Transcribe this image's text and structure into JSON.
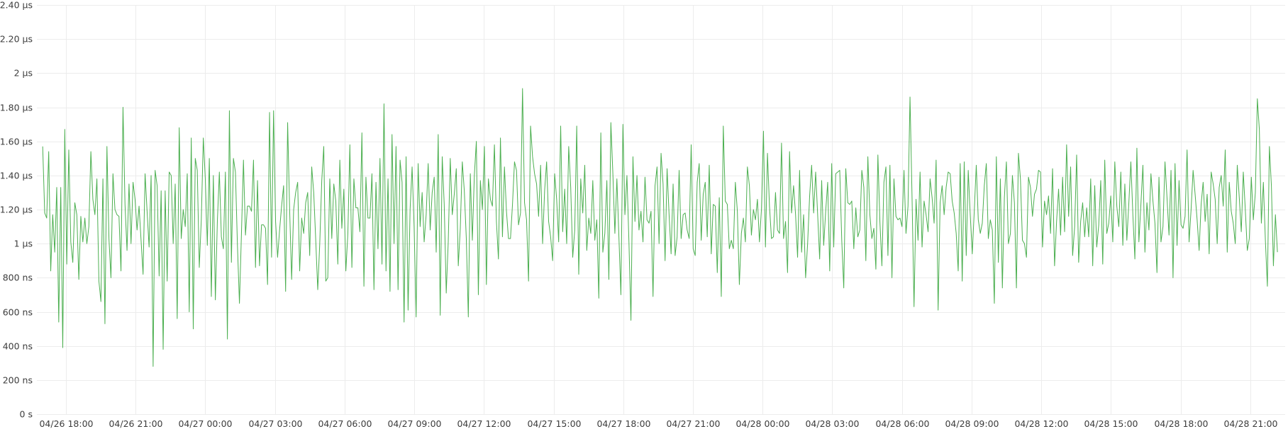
{
  "chart_data": {
    "type": "line",
    "title": "",
    "xlabel": "",
    "ylabel": "",
    "grid": true,
    "legend": "none",
    "color": "#4caf50",
    "ylim": [
      0,
      2400
    ],
    "y_unit": "ns",
    "y_ticks": [
      {
        "value": 0,
        "label": "0 s"
      },
      {
        "value": 200,
        "label": "200 ns"
      },
      {
        "value": 400,
        "label": "400 ns"
      },
      {
        "value": 600,
        "label": "600 ns"
      },
      {
        "value": 800,
        "label": "800 ns"
      },
      {
        "value": 1000,
        "label": "1 µs"
      },
      {
        "value": 1200,
        "label": "1.20 µs"
      },
      {
        "value": 1400,
        "label": "1.40 µs"
      },
      {
        "value": 1600,
        "label": "1.60 µs"
      },
      {
        "value": 1800,
        "label": "1.80 µs"
      },
      {
        "value": 2000,
        "label": "2 µs"
      },
      {
        "value": 2200,
        "label": "2.20 µs"
      },
      {
        "value": 2400,
        "label": "2.40 µs"
      }
    ],
    "xlim": [
      "04/26 16:45",
      "04/28 22:30"
    ],
    "x_ticks": [
      {
        "value": "04/26 18:00",
        "label": "04/26 18:00"
      },
      {
        "value": "04/26 21:00",
        "label": "04/26 21:00"
      },
      {
        "value": "04/27 00:00",
        "label": "04/27 00:00"
      },
      {
        "value": "04/27 03:00",
        "label": "04/27 03:00"
      },
      {
        "value": "04/27 06:00",
        "label": "04/27 06:00"
      },
      {
        "value": "04/27 09:00",
        "label": "04/27 09:00"
      },
      {
        "value": "04/27 12:00",
        "label": "04/27 12:00"
      },
      {
        "value": "04/27 15:00",
        "label": "04/27 15:00"
      },
      {
        "value": "04/27 18:00",
        "label": "04/27 18:00"
      },
      {
        "value": "04/27 21:00",
        "label": "04/27 21:00"
      },
      {
        "value": "04/28 00:00",
        "label": "04/28 00:00"
      },
      {
        "value": "04/28 03:00",
        "label": "04/28 03:00"
      },
      {
        "value": "04/28 06:00",
        "label": "04/28 06:00"
      },
      {
        "value": "04/28 09:00",
        "label": "04/28 09:00"
      },
      {
        "value": "04/28 12:00",
        "label": "04/28 12:00"
      },
      {
        "value": "04/28 15:00",
        "label": "04/28 15:00"
      },
      {
        "value": "04/28 18:00",
        "label": "04/28 18:00"
      },
      {
        "value": "04/28 21:00",
        "label": "04/28 21:00"
      }
    ],
    "series": [
      {
        "x_start": "04/26 17:00",
        "x_end": "04/28 22:10",
        "values": [
          1570,
          1180,
          1150,
          1540,
          840,
          1170,
          950,
          1330,
          540,
          1330,
          390,
          1670,
          880,
          1550,
          1010,
          890,
          1240,
          1170,
          790,
          1160,
          1010,
          1150,
          1000,
          1100,
          1540,
          1260,
          1170,
          1380,
          780,
          660,
          1380,
          530,
          1570,
          1030,
          800,
          1410,
          1200,
          1170,
          1160,
          840,
          1800,
          1230,
          960,
          1350,
          1000,
          1360,
          1260,
          1080,
          1220,
          1020,
          820,
          1410,
          1190,
          980,
          1400,
          280,
          1430,
          1340,
          810,
          1310,
          380,
          1310,
          780,
          1420,
          1400,
          1000,
          1350,
          560,
          1680,
          1030,
          1200,
          1100,
          1410,
          600,
          1620,
          500,
          1500,
          1430,
          860,
          1140,
          1620,
          1380,
          990,
          1500,
          690,
          1400,
          670,
          1130,
          1420,
          1040,
          970,
          1420,
          440,
          1780,
          890,
          1500,
          1420,
          990,
          650,
          1060,
          1490,
          1050,
          1220,
          1220,
          1190,
          1490,
          860,
          1370,
          870,
          1110,
          1110,
          1090,
          760,
          1770,
          920,
          1780,
          1130,
          920,
          1080,
          1220,
          1340,
          720,
          1710,
          1200,
          790,
          1200,
          1300,
          1360,
          840,
          1150,
          1060,
          1240,
          1300,
          930,
          1450,
          1300,
          1020,
          730,
          1000,
          1370,
          1570,
          780,
          800,
          1380,
          1030,
          1350,
          1250,
          880,
          1490,
          1090,
          1320,
          840,
          1060,
          1580,
          860,
          1380,
          1210,
          1210,
          1070,
          1650,
          750,
          1390,
          1150,
          1150,
          1410,
          730,
          1360,
          970,
          1500,
          880,
          1820,
          840,
          1380,
          720,
          1640,
          1000,
          1570,
          730,
          1490,
          1360,
          540,
          1510,
          610,
          1200,
          1450,
          1100,
          570,
          1470,
          1100,
          1300,
          1010,
          1170,
          1470,
          1080,
          1300,
          1390,
          950,
          1640,
          580,
          1510,
          1230,
          710,
          1010,
          1500,
          1170,
          1290,
          1440,
          870,
          1090,
          1480,
          1310,
          1030,
          570,
          1410,
          1020,
          1400,
          1600,
          700,
          1370,
          1200,
          1570,
          760,
          1380,
          1260,
          1220,
          1580,
          1130,
          910,
          1620,
          1040,
          1450,
          1190,
          1030,
          1030,
          1230,
          1480,
          1430,
          1110,
          1180,
          1910,
          1240,
          1140,
          780,
          1690,
          1510,
          1410,
          1350,
          1160,
          1460,
          1000,
          1310,
          1480,
          1130,
          1040,
          900,
          1410,
          1260,
          1010,
          1690,
          1070,
          1320,
          1000,
          1570,
          1330,
          920,
          1080,
          1690,
          820,
          1380,
          1180,
          1460,
          960,
          1150,
          1060,
          1370,
          1020,
          1140,
          680,
          1650,
          950,
          1060,
          1370,
          790,
          1710,
          1410,
          1060,
          1380,
          1040,
          700,
          1700,
          1170,
          1400,
          1010,
          550,
          1510,
          1130,
          1400,
          1080,
          1190,
          1010,
          1390,
          1140,
          1120,
          1190,
          690,
          1340,
          1450,
          1000,
          1530,
          1350,
          900,
          1440,
          1170,
          940,
          1350,
          930,
          1040,
          1430,
          1030,
          1170,
          1180,
          1080,
          1030,
          1580,
          970,
          930,
          1360,
          1470,
          1020,
          1290,
          1360,
          1040,
          1460,
          940,
          1230,
          1220,
          830,
          1270,
          690,
          1690,
          1250,
          1230,
          970,
          1020,
          970,
          1360,
          1190,
          760,
          1060,
          1150,
          1010,
          1450,
          1340,
          1050,
          1200,
          1140,
          1260,
          1010,
          1200,
          1660,
          980,
          1530,
          1220,
          1030,
          1040,
          1300,
          1080,
          1060,
          1590,
          1030,
          1130,
          830,
          1540,
          1180,
          1340,
          1170,
          920,
          1430,
          950,
          1170,
          800,
          1000,
          1280,
          1460,
          1180,
          1420,
          1170,
          910,
          1370,
          990,
          1190,
          1360,
          840,
          1470,
          980,
          1410,
          1420,
          1430,
          1020,
          740,
          1440,
          1240,
          1230,
          1250,
          970,
          1210,
          1040,
          1080,
          1430,
          1330,
          900,
          1510,
          1170,
          1030,
          1090,
          850,
          1520,
          1130,
          870,
          1360,
          1450,
          930,
          1460,
          800,
          1380,
          1160,
          1140,
          1150,
          1100,
          1430,
          1060,
          1220,
          1860,
          1280,
          630,
          1260,
          1020,
          1420,
          980,
          1250,
          1170,
          1070,
          1380,
          1270,
          1120,
          1490,
          610,
          1240,
          1340,
          1170,
          1330,
          1420,
          1410,
          1250,
          1180,
          1060,
          840,
          1470,
          780,
          1480,
          930,
          1430,
          1170,
          940,
          1190,
          1460,
          1140,
          1060,
          1120,
          1340,
          1470,
          1030,
          1140,
          1080,
          650,
          1510,
          890,
          1380,
          740,
          1270,
          1480,
          1000,
          1060,
          1400,
          1240,
          740,
          1530,
          1380,
          1020,
          1000,
          920,
          1390,
          1330,
          1160,
          1290,
          1320,
          1430,
          1420,
          980,
          1250,
          1170,
          1280,
          1060,
          1440,
          870,
          1130,
          1320,
          1050,
          1390,
          1070,
          1580,
          1160,
          1450,
          930,
          1100,
          1520,
          890,
          1130,
          1240,
          1040,
          1210,
          1040,
          1380,
          870,
          1340,
          980,
          1110,
          1370,
          880,
          1490,
          1060,
          1120,
          1280,
          1010,
          1480,
          1220,
          1100,
          1420,
          990,
          1350,
          1020,
          1240,
          1480,
          1170,
          910,
          1560,
          1010,
          1230,
          1460,
          950,
          1240,
          1080,
          1410,
          1250,
          1120,
          830,
          1390,
          1010,
          1100,
          1480,
          1270,
          1050,
          1430,
          800,
          1470,
          990,
          1370,
          1110,
          1090,
          1160,
          1550,
          1010,
          1200,
          1430,
          1290,
          1140,
          960,
          1230,
          1360,
          1130,
          1290,
          940,
          1420,
          1350,
          1260,
          1000,
          1330,
          1400,
          1220,
          1550,
          950,
          1360,
          1190,
          1120,
          1000,
          1460,
          1270,
          1070,
          1420,
          1200,
          960,
          1030,
          1390,
          1140,
          1300,
          1850,
          1670,
          1120,
          1360,
          1020,
          750,
          1570,
          1340,
          870,
          1170,
          950
        ]
      }
    ]
  }
}
